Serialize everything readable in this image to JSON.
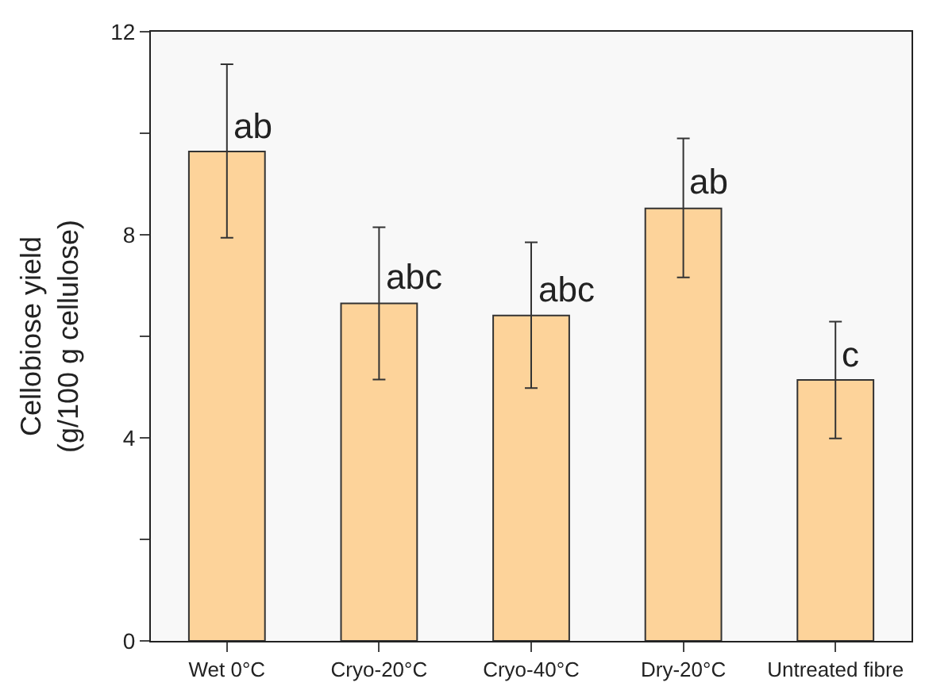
{
  "chart_data": {
    "type": "bar",
    "ylabel": "Cellobiose yield\n(g/100 g cellulose)",
    "categories": [
      "Wet 0°C",
      "Cryo-20°C",
      "Cryo-40°C",
      "Dry-20°C",
      "Untreated fibre"
    ],
    "values": [
      9.64,
      6.65,
      6.41,
      8.52,
      5.14
    ],
    "errors": [
      [
        7.94,
        11.36
      ],
      [
        5.15,
        8.15
      ],
      [
        4.98,
        7.85
      ],
      [
        7.16,
        9.9
      ],
      [
        3.99,
        6.29
      ]
    ],
    "color": "#fdd39a",
    "ylim": [
      0,
      12
    ],
    "yticks": [
      0,
      {
        "value": 2,
        "label": null
      },
      4,
      {
        "value": 6,
        "label": null
      },
      8,
      {
        "value": 10,
        "label": null
      },
      12
    ],
    "grid": false,
    "legend": false,
    "annotations": [
      {
        "text": "ab",
        "x": "Wet 0°C",
        "y": 9.64
      },
      {
        "text": "abc",
        "x": "Cryo-20°C",
        "y": 6.65
      },
      {
        "text": "abc",
        "x": "Cryo-40°C",
        "y": 6.41
      },
      {
        "text": "ab",
        "x": "Dry-20°C",
        "y": 8.52
      },
      {
        "text": "c",
        "x": "Untreated fibre",
        "y": 5.14
      }
    ]
  }
}
